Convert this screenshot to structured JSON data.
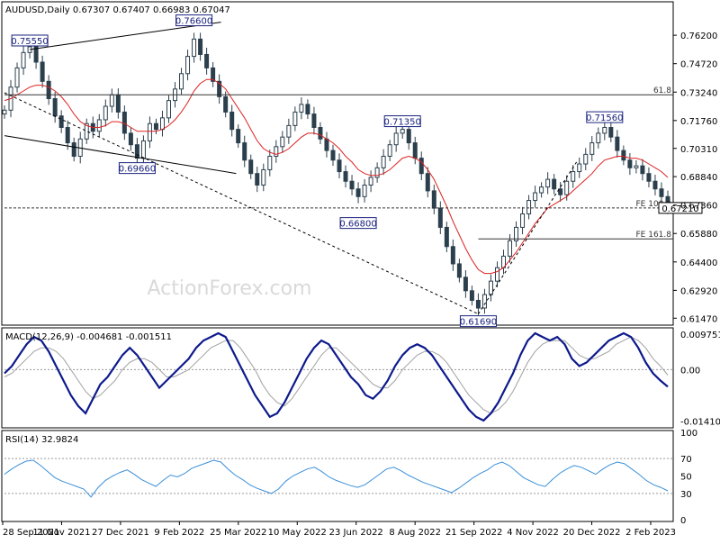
{
  "header": {
    "symbol": "AUDUSD,Daily",
    "ohlc": "0.67307 0.67407 0.66983 0.67047"
  },
  "watermark": "ActionForex.com",
  "chart_data": [
    {
      "type": "candlestick",
      "title": "AUDUSD,Daily",
      "ylim": [
        0.6125,
        0.778
      ],
      "y_ticks": [
        "0.76200",
        "0.74720",
        "0.73240",
        "0.71760",
        "0.70310",
        "0.68840",
        "0.67360",
        "0.65880",
        "0.64400",
        "0.62920",
        "0.61470"
      ],
      "x_ticks": [
        "28 Sep 2021",
        "11 Nov 2021",
        "27 Dec 2021",
        "9 Feb 2022",
        "25 Mar 2022",
        "10 May 2022",
        "23 Jun 2022",
        "8 Aug 2022",
        "21 Sep 2022",
        "4 Nov 2022",
        "20 Dec 2022",
        "2 Feb 2023"
      ],
      "current_price": "0.67210",
      "close_series": [
        0.723,
        0.735,
        0.745,
        0.753,
        0.756,
        0.748,
        0.738,
        0.729,
        0.72,
        0.714,
        0.706,
        0.699,
        0.708,
        0.716,
        0.712,
        0.718,
        0.725,
        0.731,
        0.722,
        0.711,
        0.705,
        0.698,
        0.707,
        0.716,
        0.713,
        0.719,
        0.728,
        0.734,
        0.742,
        0.751,
        0.76,
        0.752,
        0.745,
        0.738,
        0.73,
        0.722,
        0.713,
        0.706,
        0.697,
        0.69,
        0.684,
        0.692,
        0.699,
        0.704,
        0.709,
        0.715,
        0.722,
        0.726,
        0.721,
        0.714,
        0.708,
        0.702,
        0.697,
        0.691,
        0.686,
        0.682,
        0.678,
        0.684,
        0.688,
        0.693,
        0.699,
        0.705,
        0.711,
        0.713,
        0.706,
        0.698,
        0.69,
        0.681,
        0.672,
        0.662,
        0.652,
        0.643,
        0.636,
        0.629,
        0.624,
        0.62,
        0.627,
        0.634,
        0.641,
        0.647,
        0.655,
        0.662,
        0.669,
        0.676,
        0.68,
        0.683,
        0.687,
        0.682,
        0.679,
        0.686,
        0.691,
        0.695,
        0.7,
        0.706,
        0.711,
        0.714,
        0.709,
        0.702,
        0.697,
        0.693,
        0.694,
        0.69,
        0.686,
        0.682,
        0.678,
        0.672
      ],
      "ma_series": [
        0.728,
        0.729,
        0.731,
        0.733,
        0.735,
        0.736,
        0.736,
        0.735,
        0.733,
        0.73,
        0.726,
        0.721,
        0.717,
        0.715,
        0.714,
        0.714,
        0.715,
        0.717,
        0.717,
        0.716,
        0.714,
        0.712,
        0.712,
        0.712,
        0.712,
        0.713,
        0.715,
        0.718,
        0.722,
        0.727,
        0.733,
        0.737,
        0.739,
        0.739,
        0.737,
        0.734,
        0.729,
        0.724,
        0.719,
        0.713,
        0.707,
        0.703,
        0.701,
        0.7,
        0.701,
        0.703,
        0.706,
        0.709,
        0.711,
        0.711,
        0.71,
        0.708,
        0.706,
        0.703,
        0.699,
        0.696,
        0.692,
        0.69,
        0.689,
        0.689,
        0.69,
        0.692,
        0.695,
        0.698,
        0.699,
        0.698,
        0.696,
        0.692,
        0.687,
        0.68,
        0.673,
        0.665,
        0.658,
        0.651,
        0.645,
        0.64,
        0.638,
        0.638,
        0.639,
        0.641,
        0.645,
        0.649,
        0.654,
        0.659,
        0.664,
        0.668,
        0.672,
        0.674,
        0.676,
        0.678,
        0.681,
        0.684,
        0.687,
        0.69,
        0.694,
        0.697,
        0.698,
        0.699,
        0.699,
        0.698,
        0.698,
        0.697,
        0.695,
        0.693,
        0.691,
        0.688
      ],
      "price_labels": [
        {
          "text": "0.75550",
          "i": 4,
          "y": 0.7555
        },
        {
          "text": "0.76600",
          "i": 30,
          "y": 0.766
        },
        {
          "text": "0.69660",
          "i": 21,
          "y": 0.6966
        },
        {
          "text": "0.71350",
          "i": 63,
          "y": 0.7135
        },
        {
          "text": "0.66800",
          "i": 56,
          "y": 0.668
        },
        {
          "text": "0.61690",
          "i": 75,
          "y": 0.6169
        },
        {
          "text": "0.71560",
          "i": 95,
          "y": 0.7156
        }
      ],
      "horizontal_levels": [
        {
          "label": "61.8",
          "y": 0.731
        },
        {
          "label": "FE 100.0",
          "y": 0.6721
        },
        {
          "label": "FE 161.8",
          "y": 0.656
        }
      ]
    },
    {
      "type": "line",
      "title": "MACD(12,26,9) -0.004681 -0.001511",
      "ylim": [
        -0.0155,
        0.011
      ],
      "y_ticks": [
        "0.009751",
        "0.00",
        "-0.014107"
      ],
      "macd_series": [
        -0.001,
        0.001,
        0.004,
        0.007,
        0.009,
        0.008,
        0.005,
        0.001,
        -0.003,
        -0.007,
        -0.01,
        -0.012,
        -0.008,
        -0.004,
        -0.002,
        0.001,
        0.004,
        0.006,
        0.004,
        0.001,
        -0.002,
        -0.005,
        -0.003,
        -0.001,
        0.001,
        0.003,
        0.006,
        0.008,
        0.009,
        0.01,
        0.009,
        0.005,
        0.001,
        -0.003,
        -0.007,
        -0.01,
        -0.013,
        -0.012,
        -0.009,
        -0.005,
        -0.001,
        0.003,
        0.006,
        0.008,
        0.007,
        0.004,
        0.001,
        -0.002,
        -0.004,
        -0.007,
        -0.008,
        -0.006,
        -0.003,
        0.001,
        0.004,
        0.006,
        0.007,
        0.006,
        0.004,
        0.001,
        -0.002,
        -0.005,
        -0.008,
        -0.011,
        -0.013,
        -0.014,
        -0.012,
        -0.009,
        -0.005,
        -0.001,
        0.004,
        0.008,
        0.01,
        0.009,
        0.008,
        0.009,
        0.007,
        0.003,
        0.001,
        0.002,
        0.004,
        0.006,
        0.008,
        0.009,
        0.01,
        0.009,
        0.006,
        0.002,
        -0.001,
        -0.003,
        -0.0047
      ],
      "signal_series": [
        -0.002,
        -0.001,
        0.001,
        0.003,
        0.005,
        0.006,
        0.006,
        0.005,
        0.003,
        0.0,
        -0.003,
        -0.006,
        -0.008,
        -0.007,
        -0.005,
        -0.003,
        0.0,
        0.002,
        0.003,
        0.003,
        0.002,
        0.0,
        -0.002,
        -0.002,
        -0.001,
        0.0,
        0.002,
        0.004,
        0.006,
        0.007,
        0.008,
        0.008,
        0.006,
        0.003,
        0.0,
        -0.004,
        -0.007,
        -0.009,
        -0.01,
        -0.008,
        -0.005,
        -0.002,
        0.001,
        0.004,
        0.006,
        0.006,
        0.004,
        0.002,
        0.0,
        -0.002,
        -0.004,
        -0.005,
        -0.005,
        -0.003,
        0.0,
        0.002,
        0.004,
        0.005,
        0.005,
        0.004,
        0.002,
        -0.001,
        -0.004,
        -0.007,
        -0.009,
        -0.011,
        -0.012,
        -0.011,
        -0.009,
        -0.006,
        -0.002,
        0.002,
        0.005,
        0.007,
        0.008,
        0.008,
        0.008,
        0.006,
        0.004,
        0.003,
        0.003,
        0.004,
        0.005,
        0.007,
        0.008,
        0.009,
        0.008,
        0.006,
        0.003,
        0.001,
        -0.0015
      ]
    },
    {
      "type": "line",
      "title": "RSI(14) 32.9824",
      "ylim": [
        0,
        100
      ],
      "y_ticks": [
        "100",
        "70",
        "50",
        "30",
        "0"
      ],
      "rsi_series": [
        52,
        58,
        63,
        67,
        68,
        62,
        55,
        48,
        44,
        41,
        38,
        35,
        26,
        37,
        45,
        50,
        54,
        57,
        52,
        46,
        42,
        38,
        45,
        51,
        49,
        53,
        59,
        62,
        65,
        68,
        66,
        58,
        51,
        46,
        40,
        36,
        33,
        30,
        35,
        44,
        50,
        54,
        58,
        60,
        55,
        49,
        45,
        42,
        39,
        37,
        40,
        46,
        52,
        58,
        60,
        56,
        51,
        47,
        43,
        40,
        37,
        34,
        31,
        36,
        42,
        48,
        53,
        57,
        63,
        66,
        62,
        55,
        48,
        44,
        40,
        38,
        46,
        53,
        58,
        62,
        60,
        56,
        52,
        58,
        63,
        66,
        64,
        58,
        52,
        45,
        40,
        37,
        33
      ]
    }
  ]
}
